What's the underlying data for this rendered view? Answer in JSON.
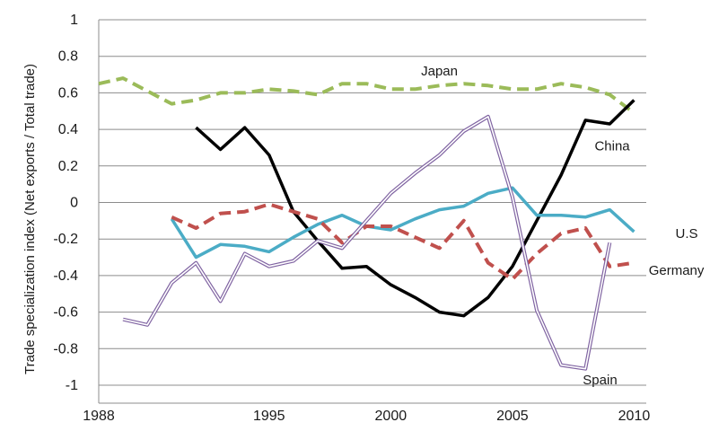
{
  "chart_data": {
    "type": "line",
    "title": "",
    "xlabel": "",
    "ylabel": "Trade specialization index  (Net exports / Total trade)",
    "xlim": [
      1988,
      2010.5
    ],
    "ylim": [
      -1,
      1
    ],
    "x_ticks": [
      1988,
      1995,
      2000,
      2005,
      2010
    ],
    "y_ticks": [
      1,
      0.8,
      0.6,
      0.4,
      0.2,
      0,
      -0.2,
      -0.4,
      -0.6,
      -0.8,
      -1
    ],
    "y_tick_labels": [
      "1",
      "0.8",
      "0.6",
      "0.4",
      "0.2",
      "0",
      "-0.2",
      "-0.4",
      "-0.6",
      "-0.8",
      "-1"
    ],
    "grid": true,
    "legend": "inline labels",
    "series": [
      {
        "name": "Japan",
        "color": "#9bbb59",
        "style": "dashed",
        "x": [
          1988,
          1989,
          1990,
          1991,
          1992,
          1993,
          1994,
          1995,
          1996,
          1997,
          1998,
          1999,
          2000,
          2001,
          2002,
          2003,
          2004,
          2005,
          2006,
          2007,
          2008,
          2009,
          2010
        ],
        "y": [
          0.65,
          0.68,
          0.61,
          0.54,
          0.56,
          0.6,
          0.6,
          0.62,
          0.61,
          0.59,
          0.65,
          0.65,
          0.62,
          0.62,
          0.64,
          0.65,
          0.64,
          0.62,
          0.62,
          0.65,
          0.63,
          0.59,
          0.49
        ]
      },
      {
        "name": "China",
        "color": "#000000",
        "style": "solid",
        "x": [
          1992,
          1993,
          1994,
          1995,
          1996,
          1997,
          1998,
          1999,
          2000,
          2001,
          2002,
          2003,
          2004,
          2005,
          2006,
          2007,
          2008,
          2009,
          2010
        ],
        "y": [
          0.41,
          0.29,
          0.41,
          0.26,
          -0.05,
          -0.21,
          -0.36,
          -0.35,
          -0.45,
          -0.52,
          -0.6,
          -0.62,
          -0.52,
          -0.35,
          -0.1,
          0.15,
          0.45,
          0.43,
          0.56
        ]
      },
      {
        "name": "U.S",
        "color": "#4bacc6",
        "style": "solid",
        "x": [
          1991,
          1992,
          1993,
          1994,
          1995,
          1996,
          1997,
          1998,
          1999,
          2000,
          2001,
          2002,
          2003,
          2004,
          2005,
          2006,
          2007,
          2008,
          2009,
          2010
        ],
        "y": [
          -0.09,
          -0.3,
          -0.23,
          -0.24,
          -0.27,
          -0.19,
          -0.12,
          -0.07,
          -0.13,
          -0.15,
          -0.09,
          -0.04,
          -0.02,
          0.05,
          0.08,
          -0.07,
          -0.07,
          -0.08,
          -0.04,
          -0.16
        ]
      },
      {
        "name": "Germany",
        "color": "#c0504d",
        "style": "dashed",
        "x": [
          1991,
          1992,
          1993,
          1994,
          1995,
          1996,
          1997,
          1998,
          1999,
          2000,
          2001,
          2002,
          2003,
          2004,
          2005,
          2006,
          2007,
          2008,
          2009,
          2010
        ],
        "y": [
          -0.08,
          -0.14,
          -0.06,
          -0.05,
          -0.01,
          -0.05,
          -0.09,
          -0.22,
          -0.13,
          -0.13,
          -0.19,
          -0.25,
          -0.1,
          -0.33,
          -0.42,
          -0.28,
          -0.17,
          -0.14,
          -0.35,
          -0.33
        ]
      },
      {
        "name": "Spain",
        "color": "#8064a2",
        "style": "double",
        "x": [
          1989,
          1990,
          1991,
          1992,
          1993,
          1994,
          1995,
          1996,
          1997,
          1998,
          1999,
          2000,
          2001,
          2002,
          2003,
          2004,
          2005,
          2006,
          2007,
          2008,
          2009
        ],
        "y": [
          -0.64,
          -0.67,
          -0.44,
          -0.33,
          -0.54,
          -0.28,
          -0.35,
          -0.32,
          -0.21,
          -0.25,
          -0.1,
          0.05,
          0.16,
          0.26,
          0.39,
          0.47,
          0.03,
          -0.59,
          -0.89,
          -0.91,
          -0.22
        ]
      }
    ]
  }
}
